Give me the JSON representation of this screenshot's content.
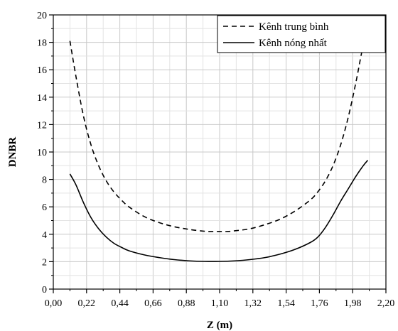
{
  "chart_data": {
    "type": "line",
    "xlabel": "Z (m)",
    "ylabel": "DNBR",
    "xlim": [
      0,
      2.2
    ],
    "ylim": [
      0,
      20
    ],
    "x_ticks": [
      "0,00",
      "0,22",
      "0,44",
      "0,66",
      "0,88",
      "1,10",
      "1,32",
      "1,54",
      "1,76",
      "1,98",
      "2,20"
    ],
    "y_ticks": [
      "0",
      "2",
      "4",
      "6",
      "8",
      "10",
      "12",
      "14",
      "16",
      "18",
      "20"
    ],
    "grid": true,
    "legend_position": "top-right",
    "series": [
      {
        "name": "Kênh trung bình",
        "style": "dashed",
        "color": "#000000",
        "x": [
          0.11,
          0.15,
          0.2,
          0.25,
          0.3,
          0.35,
          0.4,
          0.45,
          0.5,
          0.6,
          0.7,
          0.8,
          0.9,
          1.0,
          1.05,
          1.1,
          1.15,
          1.2,
          1.3,
          1.4,
          1.5,
          1.6,
          1.7,
          1.75,
          1.8,
          1.85,
          1.9,
          1.95,
          2.0,
          2.05,
          2.08
        ],
        "y": [
          18.1,
          15.5,
          12.6,
          10.5,
          9.0,
          7.9,
          7.1,
          6.5,
          6.0,
          5.3,
          4.85,
          4.55,
          4.35,
          4.22,
          4.2,
          4.2,
          4.2,
          4.25,
          4.4,
          4.7,
          5.1,
          5.7,
          6.5,
          7.1,
          7.9,
          9.0,
          10.5,
          12.5,
          15.0,
          17.8,
          18.8
        ]
      },
      {
        "name": "Kênh nóng nhất",
        "style": "solid",
        "color": "#000000",
        "x": [
          0.11,
          0.15,
          0.2,
          0.25,
          0.3,
          0.35,
          0.4,
          0.45,
          0.5,
          0.6,
          0.7,
          0.8,
          0.9,
          1.0,
          1.1,
          1.2,
          1.3,
          1.4,
          1.5,
          1.6,
          1.7,
          1.75,
          1.8,
          1.85,
          1.9,
          1.95,
          2.0,
          2.05,
          2.08
        ],
        "y": [
          8.4,
          7.6,
          6.3,
          5.2,
          4.4,
          3.8,
          3.35,
          3.05,
          2.8,
          2.5,
          2.3,
          2.15,
          2.06,
          2.02,
          2.02,
          2.06,
          2.15,
          2.3,
          2.55,
          2.9,
          3.4,
          3.8,
          4.5,
          5.4,
          6.4,
          7.3,
          8.2,
          9.0,
          9.4
        ]
      }
    ]
  }
}
